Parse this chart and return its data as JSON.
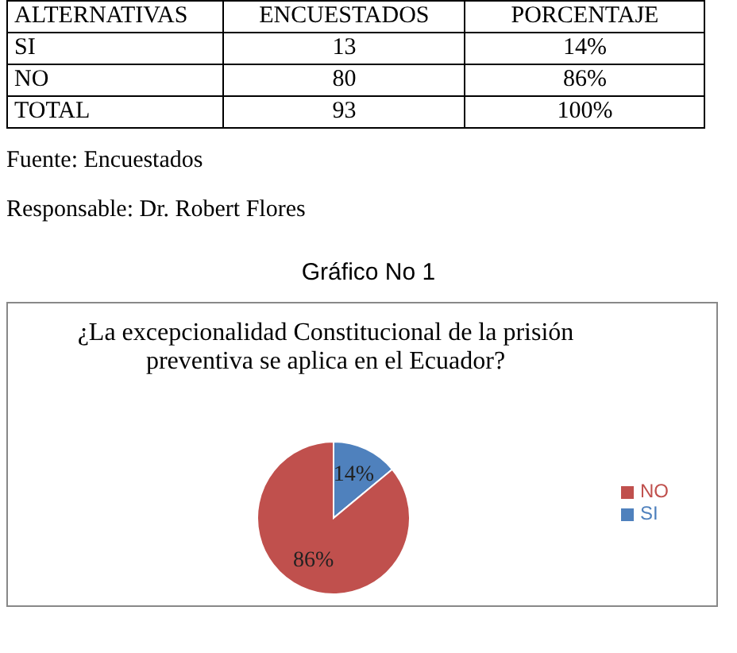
{
  "chart_data": [
    {
      "type": "other",
      "annotations": [
        "ALTERNATIVAS",
        "ENCUESTADOS",
        "PORCENTAJE",
        "SI",
        "13",
        "14%",
        "NO",
        "80",
        "86%",
        "TOTAL",
        "93",
        "100%",
        "Fuente: Encuestados",
        "Responsable: Dr. Robert Flores"
      ]
    },
    {
      "type": "pie",
      "title": "Gráfico No 1",
      "subtitle": "¿La excepcionalidad Constitucional de la prisión preventiva se aplica  en el Ecuador?",
      "categories": [
        "SI",
        "NO"
      ],
      "values": [
        14,
        86
      ],
      "colors": [
        "#4f81bd",
        "#c0504d"
      ],
      "value_labels": [
        "14%",
        "86%"
      ],
      "legend": "right"
    }
  ]
}
